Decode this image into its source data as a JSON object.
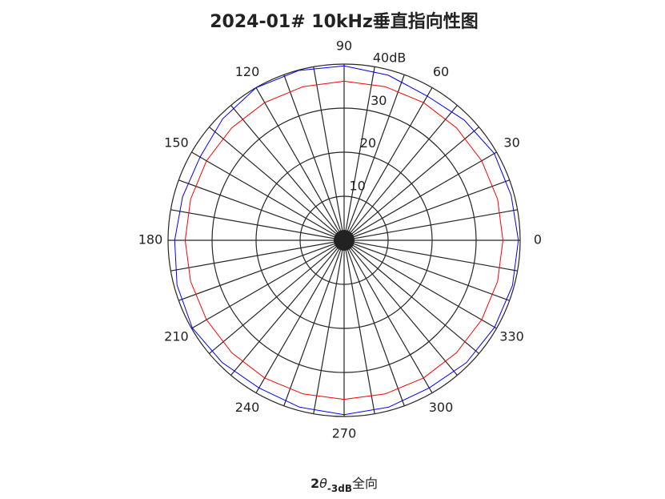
{
  "chart_data": {
    "type": "polar",
    "title": "2024-01# 10kHz垂直指向性图",
    "footer": {
      "base": "2",
      "theta": "θ",
      "sub": "-3dB",
      "suffix": "全向"
    },
    "rlim": [
      0,
      40
    ],
    "rticks": [
      10,
      20,
      30,
      {
        "value": 40,
        "label": "40dB"
      }
    ],
    "thetaticks": [
      0,
      30,
      60,
      90,
      120,
      150,
      180,
      210,
      240,
      270,
      300,
      330
    ],
    "thetagrid_step": 10,
    "series": [
      {
        "color": "#0000ff",
        "theta": [
          0,
          15,
          30,
          45,
          60,
          75,
          90,
          105,
          120,
          135,
          150,
          165,
          180,
          195,
          210,
          225,
          240,
          255,
          270,
          285,
          300,
          315,
          330,
          345
        ],
        "values": [
          39.6,
          39.3,
          39.4,
          38.6,
          37.8,
          38.8,
          39.6,
          39.9,
          40,
          39,
          37.8,
          38,
          38.5,
          39.3,
          39.8,
          39.2,
          38.7,
          39.2,
          39.6,
          39.2,
          38.7,
          39.3,
          39.5,
          39.6
        ]
      },
      {
        "color": "#ff0000",
        "theta": [
          0,
          15,
          30,
          45,
          60,
          75,
          90,
          105,
          120,
          135,
          150,
          165,
          180,
          195,
          210,
          225,
          240,
          255,
          270,
          285,
          300,
          315,
          330,
          345
        ],
        "values": [
          36.1,
          36.1,
          36.1,
          36.1,
          36.1,
          36.1,
          36.1,
          36.1,
          36.1,
          36.1,
          36.1,
          36.1,
          36.1,
          36.1,
          36.1,
          36.1,
          36.1,
          36.1,
          36.1,
          36.1,
          36.1,
          36.1,
          36.1,
          36.1
        ]
      }
    ]
  }
}
